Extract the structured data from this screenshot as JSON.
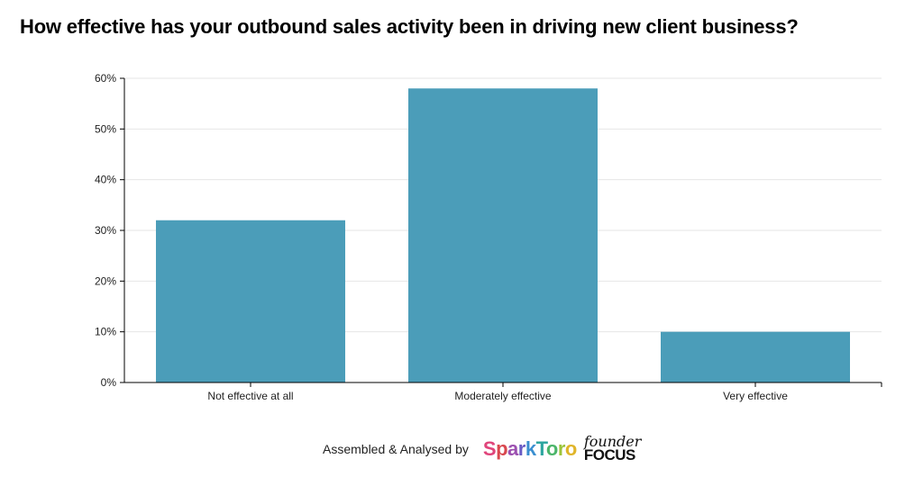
{
  "chart_data": {
    "type": "bar",
    "title": "How effective has your outbound sales activity been in driving new client business?",
    "categories": [
      "Not effective at all",
      "Moderately effective",
      "Very effective"
    ],
    "values": [
      32,
      58,
      10
    ],
    "ylim": [
      0,
      60
    ],
    "yticks": [
      0,
      10,
      20,
      30,
      40,
      50,
      60
    ],
    "ytick_suffix": "%",
    "xlabel": "",
    "ylabel": "",
    "grid": true,
    "bar_color": "#4b9db9"
  },
  "footer": {
    "assembled_label": "Assembled & Analysed by",
    "logo1": "SparkToro",
    "logo2_top": "founder",
    "logo2_bottom": "FOCUS"
  }
}
